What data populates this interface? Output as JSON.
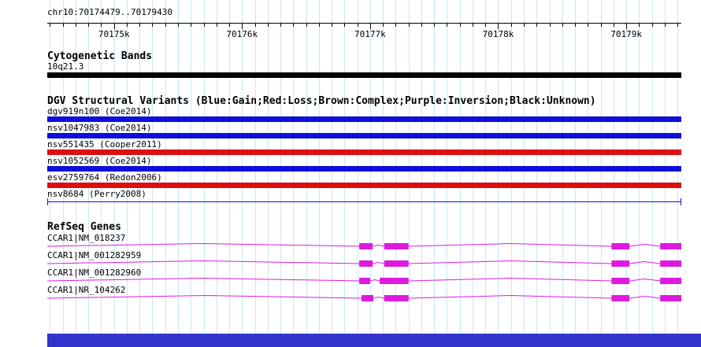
{
  "region": {
    "label": "chr10:70174479..70179430",
    "chrom": "chr10",
    "start": 70174479,
    "end": 70179430
  },
  "ruler": {
    "minor_tick_interval_bp": 100,
    "major_ticks": [
      {
        "bp": 70175000,
        "label": "70175k"
      },
      {
        "bp": 70176000,
        "label": "70176k"
      },
      {
        "bp": 70177000,
        "label": "70177k"
      },
      {
        "bp": 70178000,
        "label": "70178k"
      },
      {
        "bp": 70179000,
        "label": "70179k"
      }
    ]
  },
  "cytobands": {
    "title": "Cytogenetic Bands",
    "bands": [
      {
        "label": "10q21.3",
        "color": "#000000",
        "span": [
          70174479,
          70179430
        ]
      }
    ]
  },
  "dgv": {
    "title": "DGV Structural Variants (Blue:Gain;Red:Loss;Brown:Complex;Purple:Inversion;Black:Unknown)",
    "variants": [
      {
        "label": "dgv919n100 (Coe2014)",
        "color": "#0f0fdb",
        "shape": "bar",
        "span": [
          70174479,
          70179430
        ]
      },
      {
        "label": "nsv1047983 (Coe2014)",
        "color": "#0f0fdb",
        "shape": "bar",
        "span": [
          70174479,
          70179430
        ]
      },
      {
        "label": "nsv551435 (Cooper2011)",
        "color": "#db0f0f",
        "shape": "bar",
        "span": [
          70174479,
          70179430
        ]
      },
      {
        "label": "nsv1052569 (Coe2014)",
        "color": "#0f0fdb",
        "shape": "bar",
        "span": [
          70174479,
          70179430
        ]
      },
      {
        "label": "esv2759764 (Redon2006)",
        "color": "#db0f0f",
        "shape": "bar",
        "span": [
          70174479,
          70179430
        ]
      },
      {
        "label": "nsv8684 (Perry2008)",
        "color": "#0f0fdb",
        "shape": "line",
        "span": [
          70174479,
          70179430
        ]
      }
    ]
  },
  "genes": {
    "title": "RefSeq Genes",
    "color": "#de1ade",
    "isoforms": [
      {
        "label": "CCAR1|NM_018237",
        "exons": [
          [
            70176915,
            70177020
          ],
          [
            70177110,
            70177300
          ],
          [
            70178885,
            70179025
          ],
          [
            70179265,
            70179430
          ]
        ]
      },
      {
        "label": "CCAR1|NM_001282959",
        "exons": [
          [
            70176915,
            70177020
          ],
          [
            70177110,
            70177300
          ],
          [
            70178885,
            70179025
          ],
          [
            70179265,
            70179430
          ]
        ]
      },
      {
        "label": "CCAR1|NM_001282960",
        "exons": [
          [
            70176915,
            70177000
          ],
          [
            70177075,
            70177300
          ],
          [
            70178885,
            70179025
          ],
          [
            70179265,
            70179430
          ]
        ]
      },
      {
        "label": "CCAR1|NR_104262",
        "exons": [
          [
            70176933,
            70177025
          ],
          [
            70177110,
            70177300
          ],
          [
            70178885,
            70179025
          ],
          [
            70179265,
            70179430
          ]
        ]
      }
    ]
  },
  "colors": {
    "grid": "#c4e9f8",
    "ruler": "#000000",
    "text": "#000000",
    "scrollbar": "#3333cc",
    "background": "#ffffff"
  }
}
